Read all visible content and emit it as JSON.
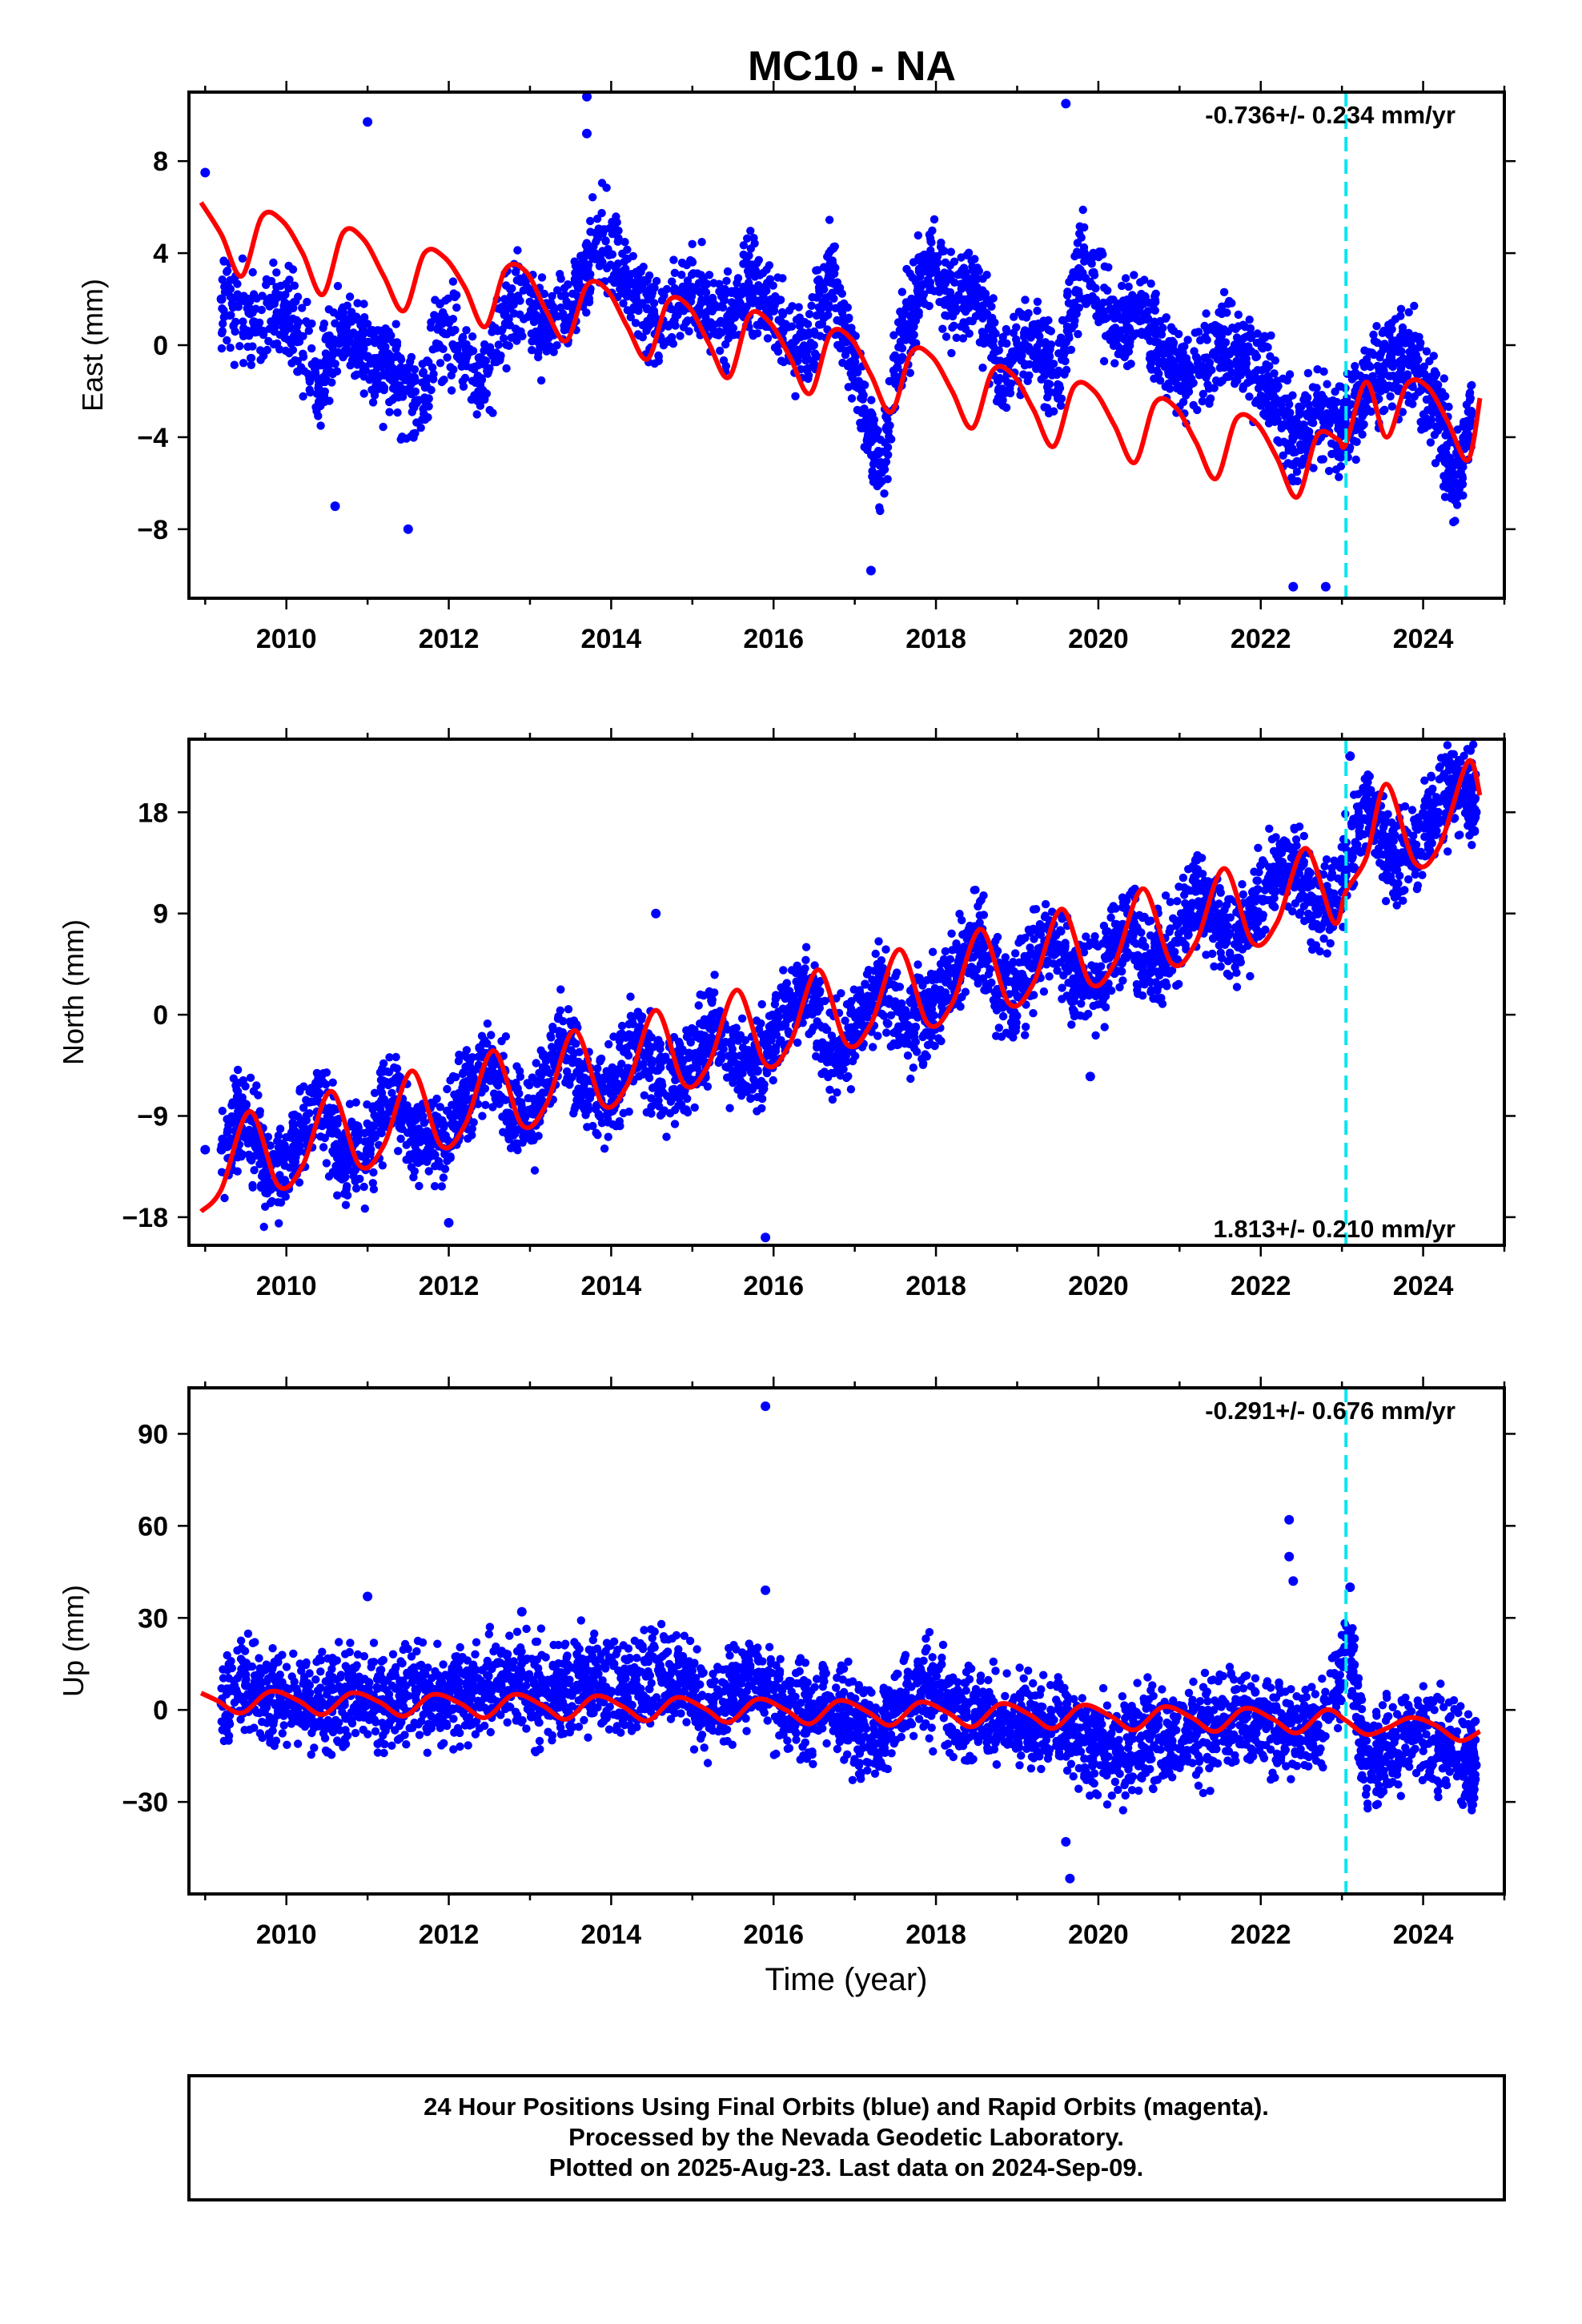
{
  "title": "MC10 - NA",
  "caption": {
    "lines": [
      "24 Hour Positions Using Final Orbits (blue) and Rapid Orbits (magenta).",
      "Processed by the Nevada Geodetic Laboratory.",
      "Plotted on 2025-Aug-23. Last data on 2024-Sep-09."
    ]
  },
  "colors": {
    "points": "#0000ff",
    "model": "#ff0000",
    "offset_line": "#00e5ee",
    "frame": "#000000"
  },
  "chart_data": [
    {
      "type": "scatter",
      "title": "MC10 - NA",
      "ylabel": "East (mm)",
      "xlabel": "",
      "xlim": [
        2008.8,
        2025.0
      ],
      "ylim": [
        -11,
        11
      ],
      "xticks": [
        2010,
        2012,
        2014,
        2016,
        2018,
        2020,
        2022,
        2024
      ],
      "yticks": [
        8,
        4,
        0,
        -4,
        -8
      ],
      "ytick_labels": [
        "8",
        "4",
        "0",
        "−4",
        "−8"
      ],
      "rate_label": "-0.736+/- 0.234 mm/yr",
      "rate_position": "top-right",
      "offset_epoch": 2023.05,
      "series": [
        {
          "kind": "daily_positions",
          "x": [
            2009.2,
            2009.6,
            2010.0,
            2010.4,
            2010.7,
            2011.0,
            2011.3,
            2011.6,
            2012.0,
            2012.4,
            2012.8,
            2013.2,
            2013.6,
            2013.9,
            2014.3,
            2014.6,
            2015.0,
            2015.4,
            2015.7,
            2016.0,
            2016.4,
            2016.7,
            2017.0,
            2017.3,
            2017.6,
            2017.9,
            2018.2,
            2018.5,
            2018.8,
            2019.2,
            2019.5,
            2019.8,
            2020.2,
            2020.5,
            2020.8,
            2021.1,
            2021.5,
            2021.8,
            2022.1,
            2022.4,
            2022.7,
            2023.0,
            2023.3,
            2023.6,
            2023.9,
            2024.2,
            2024.4,
            2024.6
          ],
          "y": [
            2.0,
            1.0,
            1.5,
            -1.5,
            0.5,
            -0.5,
            -1.0,
            -2.5,
            1.0,
            -1.5,
            2.0,
            1.0,
            2.5,
            5.0,
            2.0,
            1.0,
            2.5,
            1.0,
            2.5,
            1.5,
            -0.5,
            3.0,
            -1.0,
            -6.0,
            0.5,
            3.5,
            2.0,
            2.5,
            -1.0,
            0.5,
            -2.0,
            4.0,
            0.5,
            1.5,
            0.0,
            -1.5,
            0.0,
            -0.5,
            -2.0,
            -4.0,
            -3.0,
            -3.5,
            -2.0,
            -0.5,
            -1.0,
            -3.0,
            -6.0,
            -3.0
          ],
          "outliers": [
            [
              2009.0,
              7.5
            ],
            [
              2011.0,
              9.7
            ],
            [
              2013.7,
              10.8
            ],
            [
              2013.7,
              9.2
            ],
            [
              2019.6,
              10.5
            ],
            [
              2017.2,
              -9.8
            ],
            [
              2022.4,
              -10.5
            ],
            [
              2022.8,
              -10.5
            ],
            [
              2011.5,
              -8.0
            ],
            [
              2010.6,
              -7.0
            ]
          ]
        },
        {
          "kind": "model",
          "x": [
            2008.95,
            2009.2,
            2009.45,
            2009.7,
            2009.95,
            2010.2,
            2010.45,
            2010.7,
            2010.95,
            2011.2,
            2011.45,
            2011.7,
            2011.95,
            2012.2,
            2012.45,
            2012.7,
            2012.95,
            2013.2,
            2013.45,
            2013.7,
            2013.95,
            2014.2,
            2014.45,
            2014.7,
            2014.95,
            2015.2,
            2015.45,
            2015.7,
            2015.95,
            2016.2,
            2016.45,
            2016.7,
            2016.95,
            2017.2,
            2017.45,
            2017.7,
            2017.95,
            2018.2,
            2018.45,
            2018.7,
            2018.95,
            2019.2,
            2019.45,
            2019.7,
            2019.95,
            2020.2,
            2020.45,
            2020.7,
            2020.95,
            2021.2,
            2021.45,
            2021.7,
            2021.95,
            2022.2,
            2022.45,
            2022.7,
            2022.95,
            2023.05,
            2023.3,
            2023.55,
            2023.8,
            2024.05,
            2024.3,
            2024.55,
            2024.7
          ],
          "y": [
            6.2,
            4.8,
            3.0,
            5.6,
            5.4,
            4.0,
            2.2,
            4.9,
            4.6,
            3.0,
            1.5,
            4.0,
            3.8,
            2.5,
            0.8,
            3.3,
            3.2,
            1.5,
            0.2,
            2.6,
            2.4,
            0.8,
            -0.6,
            1.9,
            1.7,
            0.1,
            -1.4,
            1.3,
            1.0,
            -0.5,
            -2.1,
            0.5,
            0.3,
            -1.3,
            -2.9,
            -0.3,
            -0.5,
            -2.0,
            -3.6,
            -1.1,
            -1.3,
            -2.8,
            -4.4,
            -1.8,
            -2.0,
            -3.5,
            -5.1,
            -2.5,
            -2.7,
            -4.2,
            -5.8,
            -3.2,
            -3.4,
            -4.9,
            -6.6,
            -3.9,
            -4.1,
            -4.3,
            -1.6,
            -4.0,
            -1.7,
            -1.8,
            -3.3,
            -5.0,
            -2.3
          ]
        }
      ]
    },
    {
      "type": "scatter",
      "ylabel": "North (mm)",
      "xlabel": "",
      "xlim": [
        2008.8,
        2025.0
      ],
      "ylim": [
        -20.5,
        24.5
      ],
      "xticks": [
        2010,
        2012,
        2014,
        2016,
        2018,
        2020,
        2022,
        2024
      ],
      "yticks": [
        18,
        9,
        0,
        -9,
        -18
      ],
      "ytick_labels": [
        "18",
        "9",
        "0",
        "−9",
        "−18"
      ],
      "rate_label": "1.813+/- 0.210 mm/yr",
      "rate_position": "bottom-right",
      "offset_epoch": 2023.05,
      "series": [
        {
          "kind": "daily_positions",
          "x": [
            2009.2,
            2009.5,
            2009.8,
            2010.1,
            2010.4,
            2010.7,
            2011.0,
            2011.3,
            2011.6,
            2011.9,
            2012.2,
            2012.5,
            2012.8,
            2013.1,
            2013.4,
            2013.7,
            2014.0,
            2014.3,
            2014.6,
            2014.9,
            2015.2,
            2015.5,
            2015.8,
            2016.1,
            2016.4,
            2016.7,
            2017.0,
            2017.3,
            2017.6,
            2017.9,
            2018.2,
            2018.5,
            2018.8,
            2019.1,
            2019.4,
            2019.7,
            2020.0,
            2020.3,
            2020.6,
            2020.9,
            2021.2,
            2021.5,
            2021.8,
            2022.1,
            2022.4,
            2022.7,
            2023.0,
            2023.3,
            2023.6,
            2023.9,
            2024.2,
            2024.5,
            2024.65
          ],
          "y": [
            -12.0,
            -8.0,
            -15.0,
            -12.0,
            -7.0,
            -13.0,
            -12.0,
            -6.0,
            -11.0,
            -11.0,
            -7.0,
            -4.0,
            -9.5,
            -8.0,
            -2.0,
            -7.0,
            -7.0,
            -2.0,
            -6.0,
            -5.0,
            -1.0,
            -4.0,
            -5.0,
            -1.0,
            3.0,
            -3.0,
            -2.0,
            3.0,
            -1.0,
            0.0,
            4.0,
            7.0,
            1.0,
            3.0,
            8.0,
            3.0,
            3.0,
            8.0,
            5.0,
            5.0,
            11.0,
            7.0,
            7.0,
            12.0,
            14.0,
            9.0,
            12.0,
            19.0,
            14.0,
            15.0,
            19.0,
            21.0,
            18.0
          ],
          "outliers": [
            [
              2009.0,
              -12.0
            ],
            [
              2014.55,
              9.0
            ],
            [
              2015.9,
              -19.8
            ],
            [
              2012.0,
              -18.5
            ],
            [
              2023.1,
              23.0
            ],
            [
              2019.9,
              -5.5
            ]
          ]
        },
        {
          "kind": "model",
          "x": [
            2008.95,
            2009.2,
            2009.55,
            2009.9,
            2010.2,
            2010.55,
            2010.9,
            2011.2,
            2011.55,
            2011.9,
            2012.2,
            2012.55,
            2012.9,
            2013.2,
            2013.55,
            2013.9,
            2014.2,
            2014.55,
            2014.9,
            2015.2,
            2015.55,
            2015.9,
            2016.2,
            2016.55,
            2016.9,
            2017.2,
            2017.55,
            2017.9,
            2018.2,
            2018.55,
            2018.9,
            2019.2,
            2019.55,
            2019.9,
            2020.2,
            2020.55,
            2020.9,
            2021.2,
            2021.55,
            2021.9,
            2022.2,
            2022.55,
            2022.9,
            2023.05,
            2023.3,
            2023.55,
            2023.9,
            2024.2,
            2024.55,
            2024.7
          ],
          "y": [
            -17.5,
            -15.5,
            -8.6,
            -15.2,
            -13.4,
            -6.8,
            -13.4,
            -11.6,
            -5.0,
            -11.6,
            -9.8,
            -3.2,
            -9.8,
            -8.0,
            -1.4,
            -8.0,
            -6.2,
            0.4,
            -6.2,
            -4.4,
            2.2,
            -4.4,
            -2.6,
            4.0,
            -2.6,
            -0.8,
            5.8,
            -0.8,
            1.0,
            7.6,
            1.0,
            2.8,
            9.4,
            2.8,
            4.6,
            11.2,
            4.6,
            6.4,
            13.0,
            6.4,
            8.2,
            14.8,
            8.2,
            11.0,
            14.0,
            20.5,
            13.5,
            15.0,
            22.5,
            19.5
          ]
        }
      ]
    },
    {
      "type": "scatter",
      "ylabel": "Up (mm)",
      "xlabel": "Time (year)",
      "xlim": [
        2008.8,
        2025.0
      ],
      "ylim": [
        -60,
        105
      ],
      "xticks": [
        2010,
        2012,
        2014,
        2016,
        2018,
        2020,
        2022,
        2024
      ],
      "yticks": [
        90,
        60,
        30,
        0,
        -30
      ],
      "ytick_labels": [
        "90",
        "60",
        "30",
        "0",
        "−30"
      ],
      "rate_label": "-0.291+/- 0.676 mm/yr",
      "rate_position": "top-right",
      "offset_epoch": 2023.05,
      "series": [
        {
          "kind": "daily_positions",
          "x": [
            2009.2,
            2009.5,
            2009.8,
            2010.1,
            2010.4,
            2010.7,
            2011.0,
            2011.3,
            2011.6,
            2011.9,
            2012.2,
            2012.5,
            2012.8,
            2013.1,
            2013.4,
            2013.7,
            2014.0,
            2014.3,
            2014.6,
            2014.9,
            2015.2,
            2015.5,
            2015.8,
            2016.1,
            2016.4,
            2016.7,
            2017.0,
            2017.3,
            2017.6,
            2017.9,
            2018.2,
            2018.5,
            2018.8,
            2019.1,
            2019.4,
            2019.7,
            2020.0,
            2020.3,
            2020.6,
            2020.9,
            2021.2,
            2021.5,
            2021.8,
            2022.1,
            2022.4,
            2022.7,
            2023.1,
            2023.3,
            2023.6,
            2023.9,
            2024.2,
            2024.5,
            2024.65
          ],
          "y": [
            2,
            8,
            5,
            2,
            4,
            3,
            5,
            2,
            6,
            3,
            5,
            8,
            10,
            6,
            5,
            10,
            6,
            8,
            12,
            10,
            0,
            3,
            12,
            2,
            -2,
            0,
            -5,
            -8,
            2,
            8,
            0,
            -3,
            -2,
            -3,
            -6,
            -8,
            -12,
            -15,
            -8,
            -10,
            -8,
            -5,
            -3,
            -5,
            -8,
            -5,
            20,
            -18,
            -12,
            -8,
            -12,
            -15,
            -18
          ],
          "outliers": [
            [
              2015.9,
              99.0
            ],
            [
              2022.35,
              62.0
            ],
            [
              2022.35,
              50.0
            ],
            [
              2022.4,
              42.0
            ],
            [
              2011.0,
              37.0
            ],
            [
              2015.9,
              39.0
            ],
            [
              2019.6,
              -43.0
            ],
            [
              2019.65,
              -55.0
            ],
            [
              2023.1,
              40.0
            ],
            [
              2012.9,
              32.0
            ]
          ]
        },
        {
          "kind": "model",
          "x": [
            2008.95,
            2009.15,
            2009.45,
            2009.8,
            2010.15,
            2010.45,
            2010.8,
            2011.15,
            2011.45,
            2011.8,
            2012.15,
            2012.45,
            2012.8,
            2013.15,
            2013.45,
            2013.8,
            2014.15,
            2014.45,
            2014.8,
            2015.15,
            2015.45,
            2015.8,
            2016.15,
            2016.45,
            2016.8,
            2017.15,
            2017.45,
            2017.8,
            2018.15,
            2018.45,
            2018.8,
            2019.15,
            2019.45,
            2019.8,
            2020.15,
            2020.45,
            2020.8,
            2021.15,
            2021.45,
            2021.8,
            2022.15,
            2022.45,
            2022.8,
            2023.05,
            2023.3,
            2023.55,
            2023.85,
            2024.15,
            2024.45,
            2024.7
          ],
          "y": [
            5.5,
            3.0,
            -1.0,
            6.0,
            3.0,
            -1.5,
            5.5,
            2.5,
            -2.0,
            5.0,
            2.0,
            -2.5,
            5.0,
            1.5,
            -3.0,
            4.5,
            1.0,
            -3.5,
            4.0,
            0.5,
            -4.0,
            3.5,
            0.0,
            -4.5,
            3.0,
            -0.5,
            -5.0,
            2.5,
            -1.0,
            -5.5,
            2.0,
            -1.5,
            -6.0,
            1.5,
            -2.0,
            -6.5,
            1.0,
            -2.5,
            -7.0,
            0.5,
            -3.0,
            -7.5,
            0.0,
            -3.5,
            -8.0,
            -6.0,
            -2.5,
            -5.0,
            -10.0,
            -7.0
          ]
        }
      ]
    }
  ]
}
